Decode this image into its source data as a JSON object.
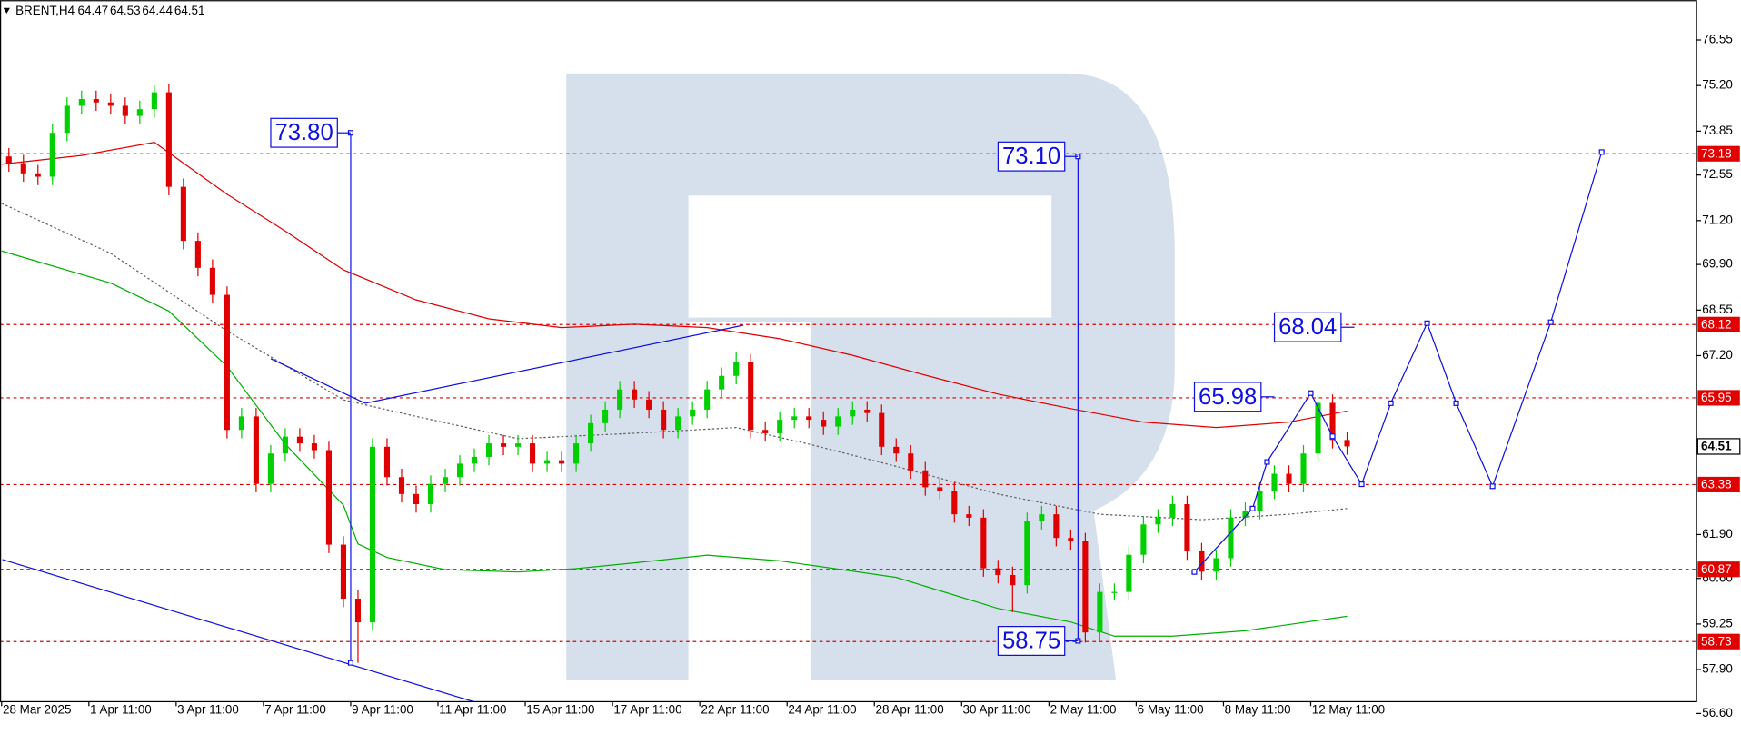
{
  "chart_data": {
    "type": "candlestick",
    "header": {
      "symbol": "BRENT,H4",
      "ohlc": [
        64.47,
        64.53,
        64.44,
        64.51
      ]
    },
    "xlim": [
      -1.22,
      232.05
    ],
    "ylim": [
      56.16,
      77.73
    ],
    "xticks": [
      {
        "value": -1,
        "label": "28 Mar 2025"
      },
      {
        "value": 11,
        "label": "1 Apr 11:00"
      },
      {
        "value": 23,
        "label": "3 Apr 11:00"
      },
      {
        "value": 35,
        "label": "7 Apr 11:00"
      },
      {
        "value": 47,
        "label": "9 Apr 11:00"
      },
      {
        "value": 59,
        "label": "11 Apr 11:00"
      },
      {
        "value": 71,
        "label": "15 Apr 11:00"
      },
      {
        "value": 83,
        "label": "17 Apr 11:00"
      },
      {
        "value": 95,
        "label": "22 Apr 11:00"
      },
      {
        "value": 107,
        "label": "24 Apr 11:00"
      },
      {
        "value": 119,
        "label": "28 Apr 11:00"
      },
      {
        "value": 131,
        "label": "30 Apr 11:00"
      },
      {
        "value": 143,
        "label": "2 May 11:00"
      },
      {
        "value": 155,
        "label": "6 May 11:00"
      },
      {
        "value": 167,
        "label": "8 May 11:00"
      },
      {
        "value": 179,
        "label": "12 May 11:00"
      }
    ],
    "yticks": [
      76.55,
      {
        "value": 75.2,
        "label": "75.20"
      },
      73.85,
      72.55,
      {
        "value": 71.2,
        "label": "71.20"
      },
      {
        "value": 69.9,
        "label": "69.90"
      },
      68.55,
      {
        "value": 67.2,
        "label": "67.20"
      },
      {
        "value": 61.9,
        "label": "61.90"
      },
      {
        "value": 60.6,
        "label": "60.60"
      },
      59.25,
      {
        "value": 57.9,
        "label": "57.90"
      },
      {
        "value": 56.6,
        "label": "56.60"
      }
    ],
    "up_color": "#00d000",
    "down_color": "#e00000",
    "candles": {
      "x": [
        0,
        2,
        4,
        6,
        8,
        10,
        12,
        14,
        16,
        18,
        20,
        22,
        24,
        26,
        28,
        30,
        32,
        34,
        36,
        38,
        40,
        42,
        44,
        46,
        48,
        50,
        52,
        54,
        56,
        58,
        60,
        62,
        64,
        66,
        68,
        70,
        72,
        74,
        76,
        78,
        80,
        82,
        84,
        86,
        88,
        90,
        92,
        94,
        96,
        98,
        100,
        102,
        104,
        106,
        108,
        110,
        112,
        114,
        116,
        118,
        120,
        122,
        124,
        126,
        128,
        130,
        132,
        134,
        136,
        138,
        140,
        142,
        144,
        146,
        148,
        150,
        152,
        154,
        156,
        158,
        160,
        162,
        164,
        166,
        168,
        170,
        172,
        174,
        176,
        178,
        180,
        182,
        184
      ],
      "open": [
        73.1,
        72.9,
        72.6,
        72.5,
        73.8,
        74.6,
        74.8,
        74.7,
        74.6,
        74.3,
        74.5,
        75.0,
        72.2,
        70.6,
        69.8,
        69.0,
        65.0,
        65.4,
        63.4,
        64.3,
        64.8,
        64.6,
        64.4,
        61.6,
        60.0,
        59.3,
        64.5,
        63.6,
        63.1,
        62.8,
        63.4,
        63.6,
        64.0,
        64.2,
        64.6,
        64.5,
        64.6,
        64.0,
        64.1,
        64.0,
        64.6,
        65.2,
        65.6,
        66.2,
        65.9,
        65.6,
        65.0,
        65.4,
        65.6,
        66.2,
        66.6,
        67.0,
        65.0,
        64.9,
        65.3,
        65.4,
        65.3,
        65.1,
        65.4,
        65.6,
        65.5,
        64.5,
        64.3,
        63.8,
        63.3,
        63.2,
        62.5,
        62.4,
        60.9,
        60.7,
        60.4,
        62.3,
        62.5,
        61.8,
        61.7,
        59.0,
        60.2,
        60.2,
        61.3,
        62.2,
        62.4,
        62.8,
        61.4,
        60.8,
        61.2,
        62.4,
        62.6,
        63.2,
        63.7,
        63.4,
        64.3,
        65.8,
        64.7
      ],
      "high": [
        73.35,
        73.15,
        72.85,
        74.05,
        74.85,
        75.05,
        75.05,
        74.95,
        74.85,
        74.75,
        75.2,
        75.25,
        72.45,
        70.85,
        70.05,
        69.25,
        65.65,
        65.65,
        64.55,
        65.05,
        65.05,
        64.85,
        64.65,
        61.85,
        60.25,
        64.75,
        64.75,
        63.85,
        63.35,
        63.65,
        63.85,
        64.25,
        64.45,
        64.85,
        64.85,
        64.85,
        64.85,
        64.35,
        64.35,
        64.85,
        65.45,
        65.85,
        66.45,
        66.45,
        66.15,
        65.85,
        65.65,
        65.85,
        66.45,
        66.85,
        67.3,
        67.25,
        65.25,
        65.55,
        65.65,
        65.65,
        65.55,
        65.65,
        65.85,
        65.85,
        65.75,
        64.75,
        64.55,
        64.05,
        63.55,
        63.45,
        62.75,
        62.65,
        61.15,
        60.95,
        62.55,
        62.75,
        62.75,
        62.05,
        61.95,
        60.45,
        60.45,
        61.55,
        62.45,
        62.65,
        63.05,
        63.05,
        61.65,
        61.45,
        62.65,
        62.85,
        63.45,
        63.95,
        63.95,
        64.55,
        66.0,
        66.05,
        64.95
      ],
      "low": [
        72.65,
        72.35,
        72.25,
        72.25,
        73.55,
        74.35,
        74.45,
        74.35,
        74.05,
        74.05,
        74.25,
        71.95,
        70.35,
        69.55,
        68.75,
        64.75,
        64.75,
        63.15,
        63.15,
        64.05,
        64.35,
        64.15,
        61.35,
        59.75,
        58.1,
        59.05,
        63.35,
        62.85,
        62.55,
        62.55,
        63.15,
        63.35,
        63.75,
        63.95,
        64.25,
        64.25,
        63.75,
        63.75,
        63.75,
        63.75,
        64.35,
        64.95,
        65.35,
        65.65,
        65.35,
        64.75,
        64.75,
        65.15,
        65.35,
        65.95,
        66.35,
        64.75,
        64.65,
        64.65,
        65.05,
        65.05,
        64.85,
        64.85,
        65.15,
        65.25,
        64.25,
        64.05,
        63.55,
        63.05,
        62.95,
        62.25,
        62.15,
        60.65,
        60.45,
        59.6,
        60.15,
        62.05,
        61.55,
        61.45,
        58.7,
        58.75,
        59.95,
        59.95,
        61.05,
        61.95,
        62.15,
        61.15,
        60.55,
        60.55,
        60.95,
        62.15,
        62.35,
        62.95,
        63.15,
        63.15,
        64.05,
        64.45,
        64.26
      ],
      "close": [
        72.9,
        72.6,
        72.5,
        73.8,
        74.6,
        74.8,
        74.7,
        74.6,
        74.3,
        74.5,
        75.0,
        72.2,
        70.6,
        69.8,
        69.0,
        65.0,
        65.4,
        63.4,
        64.3,
        64.8,
        64.6,
        64.4,
        61.6,
        60.0,
        59.3,
        64.5,
        63.6,
        63.1,
        62.8,
        63.4,
        63.6,
        64.0,
        64.2,
        64.6,
        64.5,
        64.6,
        64.0,
        64.1,
        64.0,
        64.6,
        65.2,
        65.6,
        66.2,
        65.9,
        65.6,
        65.0,
        65.4,
        65.6,
        66.2,
        66.6,
        67.0,
        65.0,
        64.9,
        65.3,
        65.4,
        65.3,
        65.1,
        65.4,
        65.6,
        65.5,
        64.5,
        64.3,
        63.8,
        63.3,
        63.2,
        62.5,
        62.4,
        60.9,
        60.7,
        60.4,
        62.3,
        62.5,
        61.8,
        61.7,
        59.0,
        60.2,
        60.2,
        61.3,
        62.2,
        62.4,
        62.8,
        61.4,
        60.8,
        61.2,
        62.4,
        62.6,
        63.2,
        63.7,
        63.4,
        64.3,
        65.8,
        64.7,
        64.51
      ]
    },
    "lines": [
      {
        "color": "#e00000",
        "dash": false,
        "x": [
          -1,
          10,
          20,
          30,
          38,
          46,
          56,
          66,
          76,
          86,
          96,
          106,
          116,
          126,
          136,
          146,
          156,
          166,
          176,
          184
        ],
        "values": [
          72.87,
          73.13,
          73.52,
          71.98,
          70.89,
          69.74,
          68.85,
          68.29,
          68.03,
          68.13,
          68.03,
          67.7,
          67.21,
          66.62,
          66.06,
          65.63,
          65.23,
          65.07,
          65.23,
          65.56
        ]
      },
      {
        "color": "#606060",
        "dash": true,
        "x": [
          -1,
          14,
          30,
          46,
          56,
          70,
          86,
          100,
          110,
          122,
          136,
          150,
          164,
          176,
          184
        ],
        "values": [
          71.71,
          70.23,
          67.93,
          65.89,
          65.4,
          64.74,
          64.9,
          65.07,
          64.58,
          63.92,
          63.1,
          62.5,
          62.34,
          62.5,
          62.67
        ]
      },
      {
        "color": "#00b000",
        "dash": false,
        "x": [
          -1,
          14,
          22,
          30,
          38,
          46,
          48,
          52,
          60,
          70,
          78,
          86,
          96,
          106,
          122,
          136,
          146,
          152,
          160,
          170,
          184
        ],
        "values": [
          70.3,
          69.35,
          68.52,
          66.88,
          64.58,
          62.77,
          61.62,
          61.22,
          60.86,
          60.79,
          60.89,
          61.06,
          61.29,
          61.12,
          60.63,
          59.71,
          59.31,
          58.89,
          58.89,
          59.05,
          59.48
        ]
      }
    ],
    "trendlines": [
      {
        "color": "#1010e0",
        "x": [
          -0.9,
          78.2
        ],
        "values": [
          61.16,
          56.02
        ]
      },
      {
        "color": "#1010e0",
        "x": [
          36,
          47,
          49,
          101
        ],
        "values": [
          67.11,
          65.99,
          65.79,
          68.1
        ]
      }
    ],
    "forecast": {
      "color": "#1010e0",
      "x": [
        163,
        171,
        173,
        179,
        182,
        186,
        190,
        195,
        199,
        204,
        212,
        219
      ],
      "values": [
        60.79,
        62.67,
        64.05,
        66.09,
        64.81,
        63.39,
        65.79,
        68.16,
        65.79,
        63.33,
        68.19,
        73.23
      ]
    },
    "vlines": [
      {
        "x": 47,
        "from": 73.8,
        "to": 58.1
      },
      {
        "x": 147,
        "from": 73.1,
        "to": 58.75
      }
    ],
    "annotations": [
      {
        "x": 47,
        "value": 73.8,
        "label": "73.80"
      },
      {
        "x": 147,
        "value": 73.1,
        "label": "73.10"
      },
      {
        "x": 147,
        "value": 58.75,
        "label": "58.75"
      },
      {
        "x": 174,
        "value": 65.98,
        "label": "65.98"
      },
      {
        "x": 185,
        "value": 68.04,
        "label": "68.04"
      }
    ],
    "level_color": "#e00000",
    "levels": [
      73.18,
      68.12,
      65.95,
      63.38,
      60.87,
      58.73
    ],
    "last_price": 64.51
  }
}
